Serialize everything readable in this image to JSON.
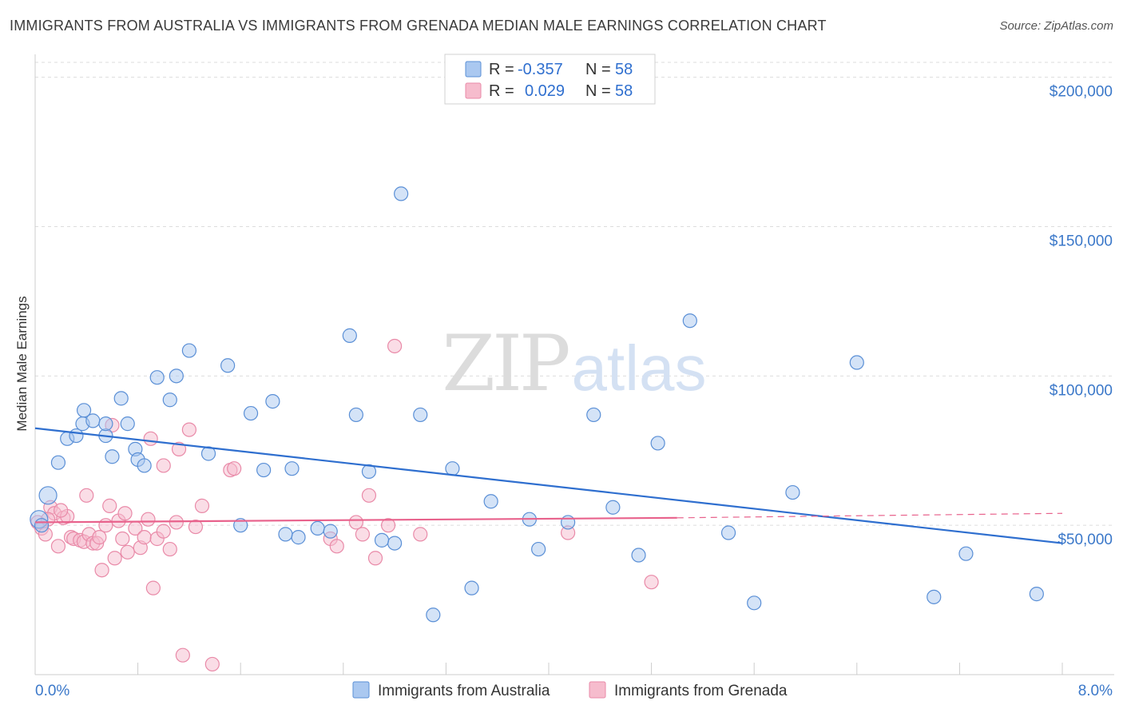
{
  "title": "IMMIGRANTS FROM AUSTRALIA VS IMMIGRANTS FROM GRENADA MEDIAN MALE EARNINGS CORRELATION CHART",
  "source": "Source: ZipAtlas.com",
  "watermark": {
    "zip": "ZIP",
    "atlas": "atlas"
  },
  "colors": {
    "australia_fill": "#aac8f0",
    "australia_stroke": "#5a8fd6",
    "australia_line": "#2f6fcf",
    "grenada_fill": "#f6bccd",
    "grenada_stroke": "#e98aa8",
    "grenada_line": "#e8628c",
    "tick_text": "#3b78c9"
  },
  "legend": {
    "rows": [
      {
        "r_label": "R =",
        "r_value": "-0.357",
        "n_label": "N =",
        "n_value": "58"
      },
      {
        "r_label": "R =",
        "r_value": "0.029",
        "n_label": "N =",
        "n_value": "58"
      }
    ]
  },
  "chart_data": {
    "type": "scatter",
    "title": "IMMIGRANTS FROM AUSTRALIA VS IMMIGRANTS FROM GRENADA MEDIAN MALE EARNINGS CORRELATION CHART",
    "xlabel": "",
    "ylabel": "Median Male Earnings",
    "xlim": [
      0,
      8
    ],
    "ylim": [
      0,
      205000
    ],
    "x_tick_labels": [
      "0.0%",
      "8.0%"
    ],
    "y_tick_values": [
      50000,
      100000,
      150000,
      200000
    ],
    "y_tick_labels": [
      "$50,000",
      "$100,000",
      "$150,000",
      "$200,000"
    ],
    "legend_position": "top-center",
    "series": [
      {
        "name": "Immigrants from Australia",
        "R": -0.357,
        "N": 58,
        "trend": {
          "x0": 0.0,
          "y0": 82500,
          "x1": 8.0,
          "y1": 44000
        },
        "points": [
          [
            0.03,
            52000
          ],
          [
            0.05,
            50000
          ],
          [
            0.1,
            60000
          ],
          [
            0.18,
            71000
          ],
          [
            0.25,
            79000
          ],
          [
            0.32,
            80000
          ],
          [
            0.38,
            88500
          ],
          [
            0.37,
            84000
          ],
          [
            0.45,
            85000
          ],
          [
            0.6,
            73000
          ],
          [
            0.55,
            80000
          ],
          [
            0.72,
            84000
          ],
          [
            0.78,
            75500
          ],
          [
            0.8,
            72000
          ],
          [
            0.67,
            92500
          ],
          [
            0.95,
            99500
          ],
          [
            1.05,
            92000
          ],
          [
            1.2,
            108500
          ],
          [
            1.35,
            74000
          ],
          [
            1.5,
            103500
          ],
          [
            1.6,
            50000
          ],
          [
            1.68,
            87500
          ],
          [
            1.78,
            68500
          ],
          [
            1.85,
            91500
          ],
          [
            2.0,
            69000
          ],
          [
            2.05,
            46000
          ],
          [
            2.2,
            49000
          ],
          [
            2.3,
            48000
          ],
          [
            2.45,
            113500
          ],
          [
            2.5,
            87000
          ],
          [
            2.6,
            68000
          ],
          [
            2.8,
            44000
          ],
          [
            2.85,
            161000
          ],
          [
            3.0,
            87000
          ],
          [
            3.1,
            20000
          ],
          [
            3.25,
            69000
          ],
          [
            3.4,
            29000
          ],
          [
            3.55,
            58000
          ],
          [
            3.85,
            52000
          ],
          [
            3.92,
            42000
          ],
          [
            4.15,
            51000
          ],
          [
            4.35,
            87000
          ],
          [
            4.5,
            56000
          ],
          [
            4.7,
            40000
          ],
          [
            4.85,
            77500
          ],
          [
            5.1,
            118500
          ],
          [
            5.4,
            47500
          ],
          [
            5.6,
            24000
          ],
          [
            5.9,
            61000
          ],
          [
            6.4,
            104500
          ],
          [
            7.0,
            26000
          ],
          [
            7.25,
            40500
          ],
          [
            7.8,
            27000
          ],
          [
            1.95,
            47000
          ],
          [
            0.55,
            84000
          ],
          [
            0.85,
            70000
          ],
          [
            1.1,
            100000
          ],
          [
            2.7,
            45000
          ]
        ]
      },
      {
        "name": "Immigrants from Grenada",
        "R": 0.029,
        "N": 58,
        "trend": {
          "x0": 0.0,
          "y0": 51000,
          "x1": 5.0,
          "y1": 52500,
          "dashed_to": {
            "x": 8.0,
            "y": 54000
          }
        },
        "points": [
          [
            0.02,
            51000
          ],
          [
            0.05,
            49000
          ],
          [
            0.08,
            47000
          ],
          [
            0.12,
            56000
          ],
          [
            0.15,
            54000
          ],
          [
            0.18,
            43000
          ],
          [
            0.22,
            52500
          ],
          [
            0.25,
            53000
          ],
          [
            0.28,
            46000
          ],
          [
            0.3,
            45500
          ],
          [
            0.35,
            45000
          ],
          [
            0.38,
            44500
          ],
          [
            0.4,
            60000
          ],
          [
            0.42,
            47000
          ],
          [
            0.45,
            44000
          ],
          [
            0.48,
            44000
          ],
          [
            0.5,
            46000
          ],
          [
            0.52,
            35000
          ],
          [
            0.55,
            50000
          ],
          [
            0.58,
            56500
          ],
          [
            0.62,
            39000
          ],
          [
            0.65,
            51500
          ],
          [
            0.68,
            45500
          ],
          [
            0.7,
            54000
          ],
          [
            0.72,
            41000
          ],
          [
            0.78,
            49000
          ],
          [
            0.82,
            42500
          ],
          [
            0.85,
            46000
          ],
          [
            0.88,
            52000
          ],
          [
            0.9,
            79000
          ],
          [
            0.92,
            29000
          ],
          [
            0.95,
            45500
          ],
          [
            1.0,
            70000
          ],
          [
            1.05,
            42000
          ],
          [
            1.1,
            51000
          ],
          [
            1.12,
            75500
          ],
          [
            1.15,
            6500
          ],
          [
            1.2,
            82000
          ],
          [
            1.25,
            49500
          ],
          [
            1.3,
            56500
          ],
          [
            1.38,
            3500
          ],
          [
            1.52,
            68500
          ],
          [
            1.55,
            69000
          ],
          [
            2.3,
            45500
          ],
          [
            2.35,
            43000
          ],
          [
            2.5,
            51000
          ],
          [
            2.55,
            47000
          ],
          [
            2.6,
            60000
          ],
          [
            2.65,
            39000
          ],
          [
            2.75,
            50000
          ],
          [
            2.8,
            110000
          ],
          [
            3.0,
            47000
          ],
          [
            4.15,
            47500
          ],
          [
            4.8,
            31000
          ],
          [
            0.1,
            52000
          ],
          [
            0.2,
            55000
          ],
          [
            0.6,
            83500
          ],
          [
            1.0,
            48000
          ]
        ]
      }
    ]
  }
}
